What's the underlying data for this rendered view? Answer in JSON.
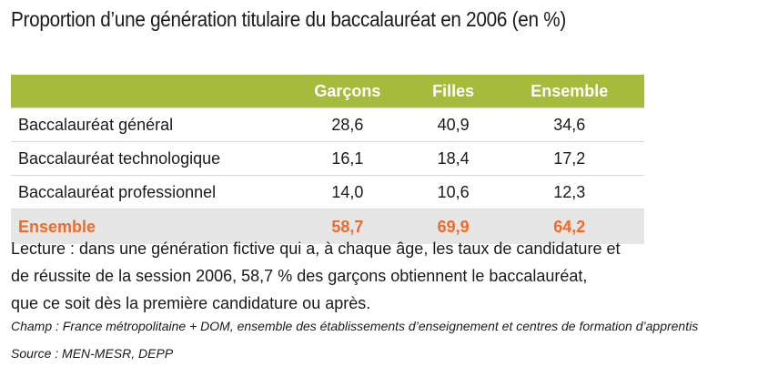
{
  "header": {
    "title": "Proportion d’une génération titulaire du baccalauréat en 2006 (en %)"
  },
  "table": {
    "columns": [
      "Garçons",
      "Filles",
      "Ensemble"
    ],
    "rows": [
      [
        "Baccalauréat général",
        "28,6",
        "40,9",
        "34,6"
      ],
      [
        "Baccalauréat technologique",
        "16,1",
        "18,4",
        "17,2"
      ],
      [
        "Baccalauréat professionnel",
        "14,0",
        "10,6",
        "12,3"
      ]
    ],
    "total": [
      "Ensemble",
      "58,7",
      "69,9",
      "64,2"
    ]
  },
  "notes": {
    "lecture": [
      "Lecture : dans une génération fictive qui a, à chaque âge, les taux de candidature et",
      "de réussite de la session 2006, 58,7 % des garçons obtiennent le baccalauréat,",
      "que ce soit dès la première candidature ou après."
    ],
    "champ": "Champ : France métropolitaine + DOM,  ensemble des établissements d’enseignement et centres de formation d’apprentis",
    "source": "Source : MEN-MESR, DEPP"
  }
}
